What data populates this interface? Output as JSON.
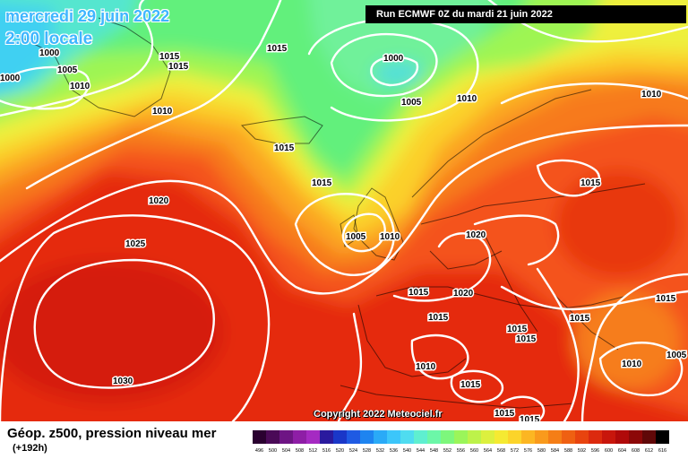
{
  "header": {
    "date_line": "mercredi 29 juin 2022",
    "time_line": "2:00 locale",
    "run_label": "Run ECMWF 0Z du mardi 21 juin 2022"
  },
  "copyright": "Copyright 2022 Meteociel.fr",
  "legend": {
    "title": "Géop. z500, pression niveau mer",
    "subtitle": "(+192h)",
    "scale_values": [
      "496",
      "500",
      "504",
      "508",
      "512",
      "516",
      "520",
      "524",
      "528",
      "532",
      "536",
      "540",
      "544",
      "548",
      "552",
      "556",
      "560",
      "564",
      "568",
      "572",
      "576",
      "580",
      "584",
      "588",
      "592",
      "596",
      "600",
      "604",
      "608",
      "612",
      "616"
    ],
    "scale_colors": [
      "#2a0030",
      "#4a0a57",
      "#6e1584",
      "#8e1ea6",
      "#a52ac2",
      "#2a1a9e",
      "#1a37c8",
      "#1f5ae3",
      "#1e84f0",
      "#2aaaf7",
      "#3cc6fa",
      "#4fdcf0",
      "#5fefd0",
      "#6cf7a8",
      "#7df77c",
      "#9bf55a",
      "#bdf24a",
      "#dcf03e",
      "#f5ea32",
      "#fcd42a",
      "#fcb622",
      "#f99a1c",
      "#f57e16",
      "#ef6012",
      "#e8440f",
      "#dc2a0e",
      "#c8160c",
      "#b00a0a",
      "#8c0808",
      "#600808",
      "#000000"
    ]
  },
  "isobar_labels": [
    "1000",
    "1005",
    "1010",
    "1000",
    "1015",
    "1015",
    "1015",
    "1010",
    "1000",
    "1005",
    "1010",
    "1010",
    "1015",
    "1015",
    "1020",
    "1025",
    "1005",
    "1010",
    "1015",
    "1020",
    "1015",
    "1020",
    "1015",
    "1015",
    "1015",
    "1010",
    "1015",
    "1015",
    "1010",
    "1005",
    "1015",
    "1030",
    "1015",
    "1015"
  ],
  "colors": {
    "date_text": "#3fb6ff",
    "run_box_bg": "#000000",
    "isobar": "#ffffff"
  }
}
